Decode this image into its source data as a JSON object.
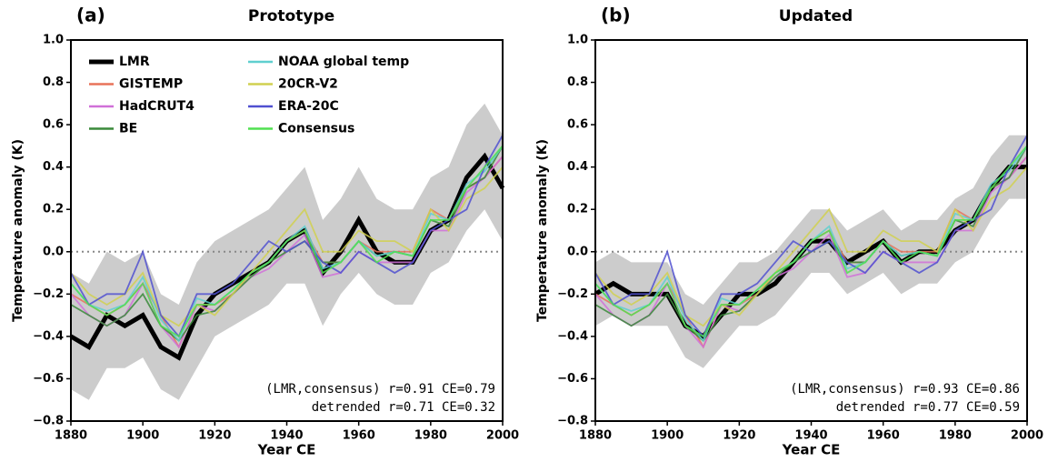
{
  "chart_data": [
    {
      "type": "line",
      "label": "(a)",
      "title": "Prototype",
      "xlabel": "Year CE",
      "ylabel": "Temperature anomaly (K)",
      "x": [
        1880,
        1885,
        1890,
        1895,
        1900,
        1905,
        1910,
        1915,
        1920,
        1925,
        1930,
        1935,
        1940,
        1945,
        1950,
        1955,
        1960,
        1965,
        1970,
        1975,
        1980,
        1985,
        1990,
        1995,
        2000
      ],
      "xlim": [
        1880,
        2000
      ],
      "xticks": [
        1880,
        1900,
        1920,
        1940,
        1960,
        1980,
        2000
      ],
      "ylim": [
        -0.8,
        1.0
      ],
      "yticks": [
        {
          "value": -0.8,
          "label": "−0.8"
        },
        {
          "value": -0.6,
          "label": "−0.6"
        },
        {
          "value": -0.4,
          "label": "−0.4"
        },
        {
          "value": -0.2,
          "label": "−0.2"
        },
        {
          "value": 0,
          "label": "0.0"
        },
        {
          "value": 0.2,
          "label": "0.2"
        },
        {
          "value": 0.4,
          "label": "0.4"
        },
        {
          "value": 0.6,
          "label": "0.6"
        },
        {
          "value": 0.8,
          "label": "0.8"
        },
        {
          "value": 1.0,
          "label": "1.0"
        }
      ],
      "reference_line": 0,
      "legend": "upper left",
      "band": {
        "color": "#cccccc",
        "lower": [
          -0.65,
          -0.7,
          -0.55,
          -0.55,
          -0.5,
          -0.65,
          -0.7,
          -0.55,
          -0.4,
          -0.35,
          -0.3,
          -0.25,
          -0.15,
          -0.15,
          -0.35,
          -0.2,
          -0.1,
          -0.2,
          -0.25,
          -0.25,
          -0.1,
          -0.05,
          0.1,
          0.2,
          0.05
        ],
        "upper": [
          -0.1,
          -0.15,
          0.0,
          -0.05,
          0.0,
          -0.2,
          -0.25,
          -0.05,
          0.05,
          0.1,
          0.15,
          0.2,
          0.3,
          0.4,
          0.15,
          0.25,
          0.4,
          0.25,
          0.2,
          0.2,
          0.35,
          0.4,
          0.6,
          0.7,
          0.55
        ]
      },
      "series": [
        {
          "name": "LMR",
          "color": "#000000",
          "values": [
            -0.4,
            -0.45,
            -0.3,
            -0.35,
            -0.3,
            -0.45,
            -0.5,
            -0.3,
            -0.2,
            -0.15,
            -0.1,
            -0.05,
            0.05,
            0.1,
            -0.1,
            0.0,
            0.15,
            0.0,
            -0.05,
            -0.05,
            0.1,
            0.15,
            0.35,
            0.45,
            0.3
          ]
        },
        {
          "name": "GISTEMP",
          "color": "#e8735a",
          "values": [
            -0.2,
            -0.25,
            -0.3,
            -0.25,
            -0.15,
            -0.3,
            -0.45,
            -0.25,
            -0.25,
            -0.2,
            -0.1,
            -0.05,
            0.05,
            0.1,
            -0.05,
            -0.05,
            0.05,
            0.0,
            0.0,
            0.0,
            0.2,
            0.15,
            0.3,
            0.35,
            0.45
          ]
        },
        {
          "name": "HadCRUT4",
          "color": "#d070d8",
          "values": [
            -0.2,
            -0.3,
            -0.35,
            -0.3,
            -0.15,
            -0.35,
            -0.45,
            -0.25,
            -0.28,
            -0.2,
            -0.12,
            -0.08,
            0.0,
            0.08,
            -0.12,
            -0.1,
            0.0,
            -0.05,
            -0.05,
            -0.05,
            0.1,
            0.1,
            0.28,
            0.35,
            0.45
          ]
        },
        {
          "name": "BE",
          "color": "#3a8a3a",
          "values": [
            -0.25,
            -0.3,
            -0.35,
            -0.3,
            -0.2,
            -0.35,
            -0.42,
            -0.3,
            -0.28,
            -0.2,
            -0.12,
            -0.05,
            0.0,
            0.05,
            -0.05,
            -0.05,
            0.05,
            -0.02,
            0.0,
            -0.02,
            0.15,
            0.12,
            0.3,
            0.35,
            0.5
          ]
        },
        {
          "name": "NOAA global temp",
          "color": "#5fcfcf",
          "values": [
            -0.15,
            -0.25,
            -0.28,
            -0.25,
            -0.12,
            -0.32,
            -0.42,
            -0.22,
            -0.25,
            -0.18,
            -0.1,
            -0.05,
            0.05,
            0.12,
            -0.08,
            -0.05,
            0.05,
            -0.02,
            0.0,
            -0.02,
            0.18,
            0.15,
            0.32,
            0.38,
            0.5
          ]
        },
        {
          "name": "20CR-V2",
          "color": "#d0d050",
          "values": [
            -0.1,
            -0.2,
            -0.25,
            -0.2,
            -0.1,
            -0.3,
            -0.35,
            -0.25,
            -0.3,
            -0.2,
            -0.1,
            0.0,
            0.1,
            0.2,
            0.0,
            0.0,
            0.1,
            0.05,
            0.05,
            0.0,
            0.2,
            0.1,
            0.25,
            0.3,
            0.4
          ]
        },
        {
          "name": "ERA-20C",
          "color": "#5050d0",
          "values": [
            -0.1,
            -0.25,
            -0.2,
            -0.2,
            0.0,
            -0.3,
            -0.4,
            -0.2,
            -0.2,
            -0.15,
            -0.05,
            0.05,
            0.0,
            0.05,
            -0.05,
            -0.1,
            0.0,
            -0.05,
            -0.1,
            -0.05,
            0.1,
            0.15,
            0.2,
            0.4,
            0.55
          ]
        },
        {
          "name": "Consensus",
          "color": "#50e050",
          "values": [
            -0.15,
            -0.25,
            -0.3,
            -0.25,
            -0.15,
            -0.35,
            -0.4,
            -0.25,
            -0.25,
            -0.18,
            -0.1,
            -0.05,
            0.05,
            0.1,
            -0.1,
            -0.05,
            0.05,
            -0.05,
            0.0,
            -0.02,
            0.15,
            0.15,
            0.3,
            0.4,
            0.5
          ]
        }
      ],
      "annotations": [
        "(LMR,consensus) r=0.91 CE=0.79",
        "detrended r=0.71 CE=0.32"
      ]
    },
    {
      "type": "line",
      "label": "(b)",
      "title": "Updated",
      "xlabel": "Year CE",
      "ylabel": "Temperature anomaly (K)",
      "x": [
        1880,
        1885,
        1890,
        1895,
        1900,
        1905,
        1910,
        1915,
        1920,
        1925,
        1930,
        1935,
        1940,
        1945,
        1950,
        1955,
        1960,
        1965,
        1970,
        1975,
        1980,
        1985,
        1990,
        1995,
        2000
      ],
      "xlim": [
        1880,
        2000
      ],
      "xticks": [
        1880,
        1900,
        1920,
        1940,
        1960,
        1980,
        2000
      ],
      "ylim": [
        -0.8,
        1.0
      ],
      "yticks": [
        {
          "value": -0.8,
          "label": "−0.8"
        },
        {
          "value": -0.6,
          "label": "−0.6"
        },
        {
          "value": -0.4,
          "label": "−0.4"
        },
        {
          "value": -0.2,
          "label": "−0.2"
        },
        {
          "value": 0,
          "label": "0.0"
        },
        {
          "value": 0.2,
          "label": "0.2"
        },
        {
          "value": 0.4,
          "label": "0.4"
        },
        {
          "value": 0.6,
          "label": "0.6"
        },
        {
          "value": 0.8,
          "label": "0.8"
        },
        {
          "value": 1.0,
          "label": "1.0"
        }
      ],
      "reference_line": 0,
      "band": {
        "color": "#cccccc",
        "lower": [
          -0.35,
          -0.3,
          -0.35,
          -0.35,
          -0.35,
          -0.5,
          -0.55,
          -0.45,
          -0.35,
          -0.35,
          -0.3,
          -0.2,
          -0.1,
          -0.1,
          -0.2,
          -0.15,
          -0.1,
          -0.2,
          -0.15,
          -0.15,
          -0.05,
          0.0,
          0.15,
          0.25,
          0.25
        ],
        "upper": [
          -0.05,
          0.0,
          -0.05,
          -0.05,
          -0.05,
          -0.2,
          -0.25,
          -0.15,
          -0.05,
          -0.05,
          0.0,
          0.1,
          0.2,
          0.2,
          0.1,
          0.15,
          0.2,
          0.1,
          0.15,
          0.15,
          0.25,
          0.3,
          0.45,
          0.55,
          0.55
        ]
      },
      "series": [
        {
          "color": "#000000",
          "values": [
            -0.2,
            -0.15,
            -0.2,
            -0.2,
            -0.2,
            -0.35,
            -0.4,
            -0.3,
            -0.2,
            -0.2,
            -0.15,
            -0.05,
            0.05,
            0.05,
            -0.05,
            0.0,
            0.05,
            -0.05,
            0.0,
            0.0,
            0.1,
            0.15,
            0.3,
            0.4,
            0.4
          ]
        },
        {
          "color": "#e8735a",
          "values": [
            -0.2,
            -0.25,
            -0.3,
            -0.25,
            -0.15,
            -0.3,
            -0.45,
            -0.25,
            -0.25,
            -0.2,
            -0.1,
            -0.05,
            0.05,
            0.1,
            -0.05,
            -0.05,
            0.05,
            0.0,
            0.0,
            0.0,
            0.2,
            0.15,
            0.3,
            0.35,
            0.45
          ]
        },
        {
          "color": "#d070d8",
          "values": [
            -0.2,
            -0.3,
            -0.35,
            -0.3,
            -0.15,
            -0.35,
            -0.45,
            -0.25,
            -0.28,
            -0.2,
            -0.12,
            -0.08,
            0.0,
            0.08,
            -0.12,
            -0.1,
            0.0,
            -0.05,
            -0.05,
            -0.05,
            0.1,
            0.1,
            0.28,
            0.35,
            0.45
          ]
        },
        {
          "color": "#3a8a3a",
          "values": [
            -0.25,
            -0.3,
            -0.35,
            -0.3,
            -0.2,
            -0.35,
            -0.42,
            -0.3,
            -0.28,
            -0.2,
            -0.12,
            -0.05,
            0.0,
            0.05,
            -0.05,
            -0.05,
            0.05,
            -0.02,
            0.0,
            -0.02,
            0.15,
            0.12,
            0.3,
            0.35,
            0.5
          ]
        },
        {
          "color": "#5fcfcf",
          "values": [
            -0.15,
            -0.25,
            -0.28,
            -0.25,
            -0.12,
            -0.32,
            -0.42,
            -0.22,
            -0.25,
            -0.18,
            -0.1,
            -0.05,
            0.05,
            0.12,
            -0.08,
            -0.05,
            0.05,
            -0.02,
            0.0,
            -0.02,
            0.18,
            0.15,
            0.32,
            0.38,
            0.5
          ]
        },
        {
          "color": "#d0d050",
          "values": [
            -0.1,
            -0.2,
            -0.25,
            -0.2,
            -0.1,
            -0.3,
            -0.35,
            -0.25,
            -0.3,
            -0.2,
            -0.1,
            0.0,
            0.1,
            0.2,
            0.0,
            0.0,
            0.1,
            0.05,
            0.05,
            0.0,
            0.2,
            0.1,
            0.25,
            0.3,
            0.4
          ]
        },
        {
          "color": "#5050d0",
          "values": [
            -0.1,
            -0.25,
            -0.2,
            -0.2,
            0.0,
            -0.3,
            -0.4,
            -0.2,
            -0.2,
            -0.15,
            -0.05,
            0.05,
            0.0,
            0.05,
            -0.05,
            -0.1,
            0.0,
            -0.05,
            -0.1,
            -0.05,
            0.1,
            0.15,
            0.2,
            0.4,
            0.55
          ]
        },
        {
          "color": "#50e050",
          "values": [
            -0.15,
            -0.25,
            -0.3,
            -0.25,
            -0.15,
            -0.35,
            -0.4,
            -0.25,
            -0.25,
            -0.18,
            -0.1,
            -0.05,
            0.05,
            0.1,
            -0.1,
            -0.05,
            0.05,
            -0.05,
            0.0,
            -0.02,
            0.15,
            0.15,
            0.3,
            0.4,
            0.5
          ]
        }
      ],
      "annotations": [
        "(LMR,consensus) r=0.93 CE=0.86",
        "detrended r=0.77 CE=0.59"
      ]
    }
  ]
}
